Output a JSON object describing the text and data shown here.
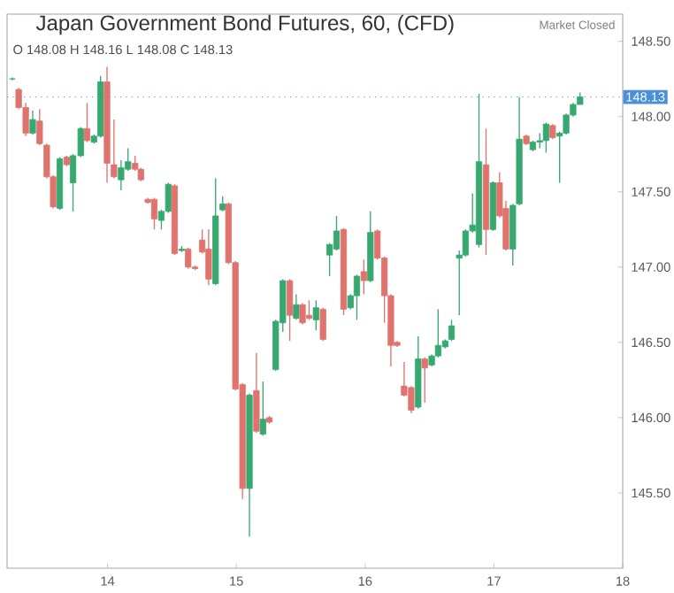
{
  "chart_data": {
    "type": "candlestick",
    "title": "Japan Government Bond Futures, 60, (CFD)",
    "subtitle": "O 148.08 H 148.16 L 148.08 C 148.13",
    "annotations": [
      "Market Closed"
    ],
    "x": [
      13.261,
      13.31,
      13.365,
      13.419,
      13.473,
      13.528,
      13.578,
      13.629,
      13.683,
      13.732,
      13.792,
      13.841,
      13.895,
      13.946,
      13.996,
      14.05,
      14.105,
      14.159,
      14.214,
      14.259,
      14.313,
      14.363,
      14.418,
      14.472,
      14.521,
      14.576,
      14.626,
      14.68,
      14.735,
      14.785,
      14.839,
      14.894,
      14.939,
      14.993,
      15.048,
      15.102,
      15.156,
      15.207,
      15.256,
      15.306,
      15.361,
      15.415,
      15.465,
      15.514,
      15.565,
      15.619,
      15.673,
      15.724,
      15.778,
      15.833,
      15.887,
      15.936,
      15.99,
      16.041,
      16.095,
      16.15,
      16.2,
      16.249,
      16.303,
      16.358,
      16.412,
      16.463,
      16.517,
      16.567,
      16.622,
      16.671,
      16.731,
      16.78,
      16.834,
      16.884,
      16.939,
      16.993,
      17.044,
      17.093,
      17.147,
      17.197,
      17.252,
      17.302,
      17.356,
      17.405,
      17.456,
      17.51,
      17.561,
      17.615,
      17.669
    ],
    "ohlc": [
      [
        148.25,
        148.26,
        148.24,
        148.25
      ],
      [
        148.18,
        148.19,
        148.05,
        148.06
      ],
      [
        148.06,
        148.09,
        147.87,
        147.89
      ],
      [
        147.89,
        148.04,
        147.88,
        147.98
      ],
      [
        147.97,
        148.05,
        147.81,
        147.82
      ],
      [
        147.81,
        147.82,
        147.59,
        147.6
      ],
      [
        147.6,
        147.61,
        147.39,
        147.4
      ],
      [
        147.39,
        147.73,
        147.38,
        147.72
      ],
      [
        147.73,
        147.74,
        147.67,
        147.68
      ],
      [
        147.56,
        147.75,
        147.37,
        147.74
      ],
      [
        147.74,
        147.93,
        147.73,
        147.92
      ],
      [
        147.92,
        148.09,
        147.83,
        147.84
      ],
      [
        147.83,
        147.88,
        147.82,
        147.87
      ],
      [
        147.87,
        148.27,
        147.86,
        148.23
      ],
      [
        148.23,
        148.33,
        147.56,
        147.69
      ],
      [
        147.68,
        147.98,
        147.59,
        147.6
      ],
      [
        147.58,
        147.71,
        147.51,
        147.66
      ],
      [
        147.65,
        147.79,
        147.64,
        147.7
      ],
      [
        147.69,
        147.74,
        147.64,
        147.65
      ],
      [
        147.65,
        147.66,
        147.57,
        147.58
      ],
      [
        147.45,
        147.46,
        147.42,
        147.43
      ],
      [
        147.45,
        147.46,
        147.25,
        147.32
      ],
      [
        147.31,
        147.38,
        147.25,
        147.37
      ],
      [
        147.37,
        147.56,
        147.36,
        147.55
      ],
      [
        147.54,
        147.55,
        147.08,
        147.09
      ],
      [
        147.11,
        147.14,
        147.1,
        147.12
      ],
      [
        147.12,
        147.13,
        146.99,
        147.0
      ],
      [
        147.0,
        147.01,
        146.98,
        146.99
      ],
      [
        147.18,
        147.25,
        147.09,
        147.1
      ],
      [
        147.12,
        147.25,
        146.88,
        146.92
      ],
      [
        146.89,
        147.59,
        146.88,
        147.34
      ],
      [
        147.38,
        147.47,
        147.37,
        147.42
      ],
      [
        147.42,
        147.43,
        147.02,
        147.03
      ],
      [
        147.03,
        147.04,
        146.18,
        146.19
      ],
      [
        146.22,
        146.23,
        145.46,
        145.53
      ],
      [
        145.53,
        146.16,
        145.21,
        146.15
      ],
      [
        146.18,
        146.43,
        145.9,
        145.91
      ],
      [
        145.89,
        146.24,
        145.88,
        145.99
      ],
      [
        146.0,
        146.01,
        145.96,
        145.97
      ],
      [
        146.32,
        146.65,
        146.31,
        146.64
      ],
      [
        146.63,
        146.92,
        146.57,
        146.91
      ],
      [
        146.91,
        146.92,
        146.51,
        146.68
      ],
      [
        146.66,
        146.82,
        146.65,
        146.75
      ],
      [
        146.75,
        146.76,
        146.62,
        146.63
      ],
      [
        146.68,
        146.78,
        146.65,
        146.66
      ],
      [
        146.65,
        146.78,
        146.58,
        146.73
      ],
      [
        146.72,
        146.73,
        146.51,
        146.52
      ],
      [
        147.08,
        147.16,
        146.94,
        147.15
      ],
      [
        147.12,
        147.34,
        147.11,
        147.24
      ],
      [
        147.25,
        147.26,
        146.68,
        146.72
      ],
      [
        146.73,
        146.82,
        146.72,
        146.81
      ],
      [
        146.81,
        146.95,
        146.65,
        146.94
      ],
      [
        146.97,
        147.05,
        146.82,
        146.91
      ],
      [
        146.91,
        147.37,
        146.9,
        147.23
      ],
      [
        147.24,
        147.25,
        147.05,
        147.06
      ],
      [
        147.06,
        147.07,
        146.63,
        146.81
      ],
      [
        146.81,
        146.82,
        146.34,
        146.48
      ],
      [
        146.5,
        146.51,
        146.47,
        146.48
      ],
      [
        146.21,
        146.37,
        146.14,
        146.15
      ],
      [
        146.2,
        146.21,
        146.03,
        146.05
      ],
      [
        146.07,
        146.54,
        146.06,
        146.39
      ],
      [
        146.39,
        146.4,
        146.1,
        146.33
      ],
      [
        146.35,
        146.42,
        146.34,
        146.41
      ],
      [
        146.41,
        146.72,
        146.4,
        146.48
      ],
      [
        146.47,
        146.52,
        146.46,
        146.51
      ],
      [
        146.52,
        146.65,
        146.51,
        146.61
      ],
      [
        147.06,
        147.11,
        146.68,
        147.08
      ],
      [
        147.08,
        147.25,
        147.07,
        147.24
      ],
      [
        147.24,
        147.49,
        147.23,
        147.28
      ],
      [
        147.15,
        148.15,
        147.13,
        147.7
      ],
      [
        147.68,
        147.92,
        147.08,
        147.25
      ],
      [
        147.25,
        147.57,
        147.24,
        147.56
      ],
      [
        147.56,
        147.63,
        147.33,
        147.34
      ],
      [
        147.39,
        147.44,
        147.11,
        147.12
      ],
      [
        147.12,
        147.42,
        147.01,
        147.41
      ],
      [
        147.42,
        148.13,
        147.41,
        147.85
      ],
      [
        147.87,
        147.88,
        147.81,
        147.82
      ],
      [
        147.78,
        147.84,
        147.77,
        147.83
      ],
      [
        147.83,
        147.89,
        147.79,
        147.84
      ],
      [
        147.84,
        147.96,
        147.76,
        147.95
      ],
      [
        147.94,
        147.95,
        147.85,
        147.86
      ],
      [
        147.87,
        147.9,
        147.56,
        147.89
      ],
      [
        147.89,
        148.02,
        147.88,
        148.01
      ],
      [
        148.01,
        148.09,
        148.0,
        148.08
      ],
      [
        148.08,
        148.16,
        148.08,
        148.13
      ]
    ],
    "colors": [
      "#37a970",
      "#e0736e",
      "#e0736e",
      "#37a970",
      "#e0736e",
      "#e0736e",
      "#e0736e",
      "#37a970",
      "#e0736e",
      "#37a970",
      "#37a970",
      "#e0736e",
      "#37a970",
      "#37a970",
      "#e0736e",
      "#e0736e",
      "#37a970",
      "#37a970",
      "#e0736e",
      "#e0736e",
      "#e0736e",
      "#e0736e",
      "#37a970",
      "#37a970",
      "#e0736e",
      "#37a970",
      "#e0736e",
      "#e0736e",
      "#e0736e",
      "#e0736e",
      "#37a970",
      "#37a970",
      "#e0736e",
      "#e0736e",
      "#e0736e",
      "#37a970",
      "#e0736e",
      "#37a970",
      "#e0736e",
      "#37a970",
      "#37a970",
      "#e0736e",
      "#37a970",
      "#e0736e",
      "#e0736e",
      "#37a970",
      "#e0736e",
      "#37a970",
      "#37a970",
      "#e0736e",
      "#37a970",
      "#37a970",
      "#e0736e",
      "#37a970",
      "#e0736e",
      "#e0736e",
      "#e0736e",
      "#e0736e",
      "#e0736e",
      "#e0736e",
      "#37a970",
      "#e0736e",
      "#37a970",
      "#37a970",
      "#37a970",
      "#37a970",
      "#37a970",
      "#37a970",
      "#37a970",
      "#37a970",
      "#e0736e",
      "#37a970",
      "#e0736e",
      "#e0736e",
      "#37a970",
      "#37a970",
      "#e0736e",
      "#37a970",
      "#37a970",
      "#37a970",
      "#e0736e",
      "#37a970",
      "#37a970",
      "#37a970",
      "#37a970"
    ],
    "xlim": [
      13.22,
      18.0
    ],
    "xticks": [
      14,
      15,
      16,
      17,
      18
    ],
    "ylim": [
      145.0,
      148.68
    ],
    "yticks": [
      {
        "value": 145.5,
        "label": "145.50"
      },
      {
        "value": 146,
        "label": "146.00"
      },
      {
        "value": 146.5,
        "label": "146.50"
      },
      {
        "value": 147,
        "label": "147.00"
      },
      {
        "value": 147.5,
        "label": "147.50"
      },
      {
        "value": 148,
        "label": "148.00"
      },
      {
        "value": 148.5,
        "label": "148.50"
      }
    ],
    "ref_lines": [
      {
        "axis": "y",
        "value": 148.13,
        "label": "148.13",
        "color": "#4a90d9",
        "line_style": "dotted"
      }
    ]
  }
}
